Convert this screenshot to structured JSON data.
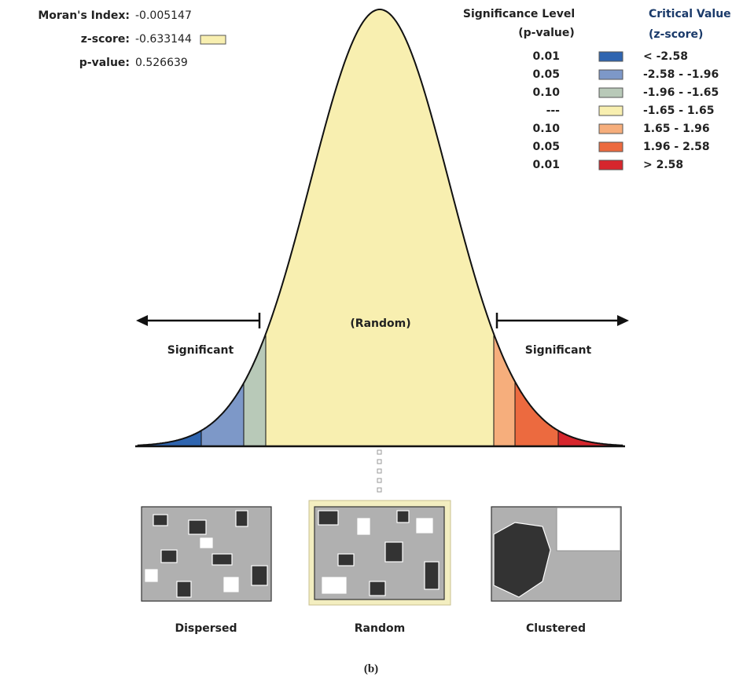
{
  "stats": [
    {
      "label": "Moran's Index:",
      "value": "-0.005147"
    },
    {
      "label": "z-score:",
      "value": "-0.633144"
    },
    {
      "label": "p-value:",
      "value": "0.526639"
    }
  ],
  "legend": {
    "significance_header": [
      "Significance Level",
      "(p-value)"
    ],
    "critical_header": [
      "Critical Value",
      "(z-score)"
    ],
    "rows": [
      {
        "p": "0.01",
        "z": "< -2.58",
        "color": "#2f65b0"
      },
      {
        "p": "0.05",
        "z": "-2.58 - -1.96",
        "color": "#7d98c8"
      },
      {
        "p": "0.10",
        "z": "-1.96 - -1.65",
        "color": "#b8c9b8"
      },
      {
        "p": "---",
        "z": "-1.65 - 1.65",
        "color": "#f8efb0"
      },
      {
        "p": "0.10",
        "z": "1.65 - 1.96",
        "color": "#f6ae7c"
      },
      {
        "p": "0.05",
        "z": "1.96 - 2.58",
        "color": "#ec6a3f"
      },
      {
        "p": "0.01",
        "z": "> 2.58",
        "color": "#d6262d"
      }
    ]
  },
  "curve_labels": {
    "left": "Significant",
    "middle": "(Random)",
    "right": "Significant"
  },
  "maps": [
    "Dispersed",
    "Random",
    "Clustered"
  ],
  "caption": "(b)"
}
